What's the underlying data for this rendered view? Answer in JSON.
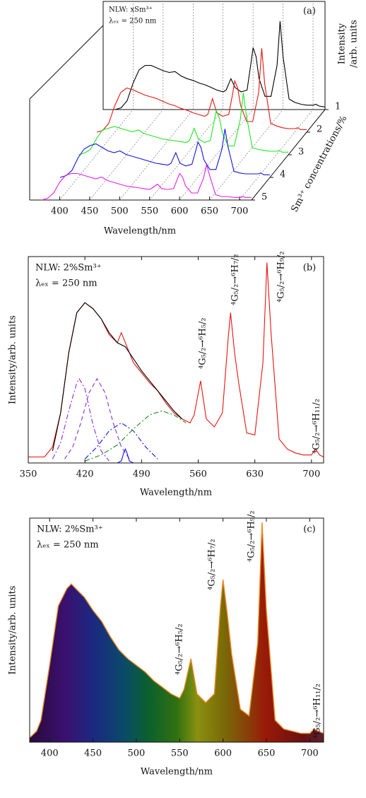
{
  "chart_data": [
    {
      "type": "waterfall",
      "panel_label": "(a)",
      "annotations": [
        "NLW: xSm³⁺",
        "λₑₓ = 250 nm"
      ],
      "ylabel": [
        "Intensity",
        "/arb. units"
      ],
      "xlabel": "Wavelength/nm",
      "zlabel": "Sm³⁺ concentrations/%",
      "xlim": [
        350,
        720
      ],
      "xticks": [
        400,
        450,
        500,
        550,
        600,
        650,
        700
      ],
      "x": [
        370,
        380,
        390,
        400,
        410,
        420,
        430,
        440,
        450,
        460,
        470,
        480,
        490,
        500,
        510,
        520,
        530,
        540,
        550,
        555,
        563,
        570,
        580,
        590,
        597,
        600,
        605,
        610,
        620,
        630,
        640,
        645,
        650,
        660,
        670,
        680,
        690,
        700,
        705,
        710,
        720
      ],
      "series": [
        {
          "name": "1",
          "color": "#000000",
          "values": [
            0,
            2,
            10,
            30,
            45,
            50,
            50,
            47,
            44,
            42,
            43,
            38,
            35,
            33,
            30,
            28,
            25,
            22,
            20,
            22,
            35,
            25,
            20,
            22,
            55,
            70,
            60,
            35,
            15,
            15,
            50,
            100,
            60,
            12,
            8,
            6,
            5,
            5,
            6,
            4,
            3
          ]
        },
        {
          "name": "2",
          "color": "#e8140f",
          "values": [
            0,
            2,
            10,
            30,
            45,
            50,
            48,
            45,
            42,
            40,
            38,
            35,
            32,
            30,
            27,
            25,
            22,
            20,
            18,
            20,
            38,
            22,
            18,
            20,
            45,
            58,
            50,
            30,
            12,
            12,
            45,
            95,
            55,
            10,
            7,
            5,
            4,
            4,
            5,
            3,
            3
          ]
        },
        {
          "name": "3",
          "color": "#1ee81e",
          "values": [
            0,
            2,
            6,
            18,
            28,
            30,
            32,
            30,
            28,
            26,
            28,
            24,
            22,
            20,
            18,
            17,
            16,
            15,
            14,
            16,
            30,
            18,
            14,
            16,
            40,
            50,
            42,
            25,
            10,
            10,
            40,
            70,
            45,
            8,
            6,
            5,
            4,
            4,
            5,
            3,
            3
          ]
        },
        {
          "name": "4",
          "color": "#1414e0",
          "values": [
            0,
            2,
            8,
            22,
            32,
            36,
            38,
            34,
            30,
            28,
            30,
            26,
            24,
            22,
            20,
            18,
            16,
            15,
            14,
            16,
            28,
            16,
            13,
            15,
            32,
            40,
            34,
            20,
            9,
            9,
            32,
            55,
            35,
            7,
            5,
            4,
            4,
            4,
            5,
            3,
            3
          ]
        },
        {
          "name": "5",
          "color": "#e81ee8",
          "values": [
            0,
            2,
            8,
            20,
            28,
            30,
            30,
            28,
            26,
            24,
            26,
            22,
            20,
            18,
            16,
            15,
            14,
            13,
            12,
            14,
            18,
            13,
            12,
            13,
            25,
            30,
            26,
            16,
            8,
            8,
            25,
            40,
            28,
            6,
            4,
            4,
            3,
            3,
            4,
            3,
            3
          ]
        }
      ]
    },
    {
      "type": "line",
      "panel_label": "(b)",
      "annotations": [
        "NLW: 2%Sm³⁺",
        "λₑₓ = 250 nm"
      ],
      "peak_labels": [
        "⁴G₅/₂→⁶H₅/₂",
        "⁴G₅/₂→⁶H₇/₂",
        "⁴G₅/₂→⁶H₉/₂",
        "⁴G₅/₂→⁶H₁₁/₂"
      ],
      "ylabel": "Intensity/arb. units",
      "xlabel": "Wavelength/nm",
      "xlim": [
        350,
        715
      ],
      "ylim": [
        0,
        103
      ],
      "xticks": [
        350,
        420,
        490,
        560,
        630,
        700
      ],
      "series": [
        {
          "color": "#e8140f",
          "style": "solid",
          "x": [
            350,
            360,
            370,
            380,
            390,
            400,
            410,
            420,
            430,
            440,
            450,
            460,
            465,
            470,
            475,
            480,
            490,
            500,
            510,
            520,
            530,
            540,
            550,
            555,
            563,
            570,
            580,
            590,
            597,
            600,
            605,
            610,
            620,
            630,
            640,
            645,
            650,
            660,
            670,
            680,
            690,
            700,
            705,
            710,
            715
          ],
          "values": [
            3,
            3,
            3,
            8,
            25,
            55,
            75,
            80,
            77,
            72,
            64,
            60,
            65,
            60,
            55,
            50,
            45,
            40,
            36,
            30,
            25,
            22,
            20,
            24,
            41,
            22,
            18,
            25,
            62,
            75,
            55,
            40,
            15,
            14,
            50,
            100,
            65,
            12,
            7,
            5,
            4,
            4,
            7,
            4,
            3
          ]
        },
        {
          "color": "#000000",
          "style": "solid",
          "x": [
            380,
            390,
            400,
            410,
            420,
            430,
            440,
            450,
            460,
            470,
            480,
            490,
            500,
            510,
            520,
            530,
            540
          ],
          "values": [
            6,
            25,
            55,
            75,
            80,
            77,
            72,
            65,
            60,
            58,
            52,
            46,
            41,
            36,
            31,
            26,
            22
          ]
        },
        {
          "color": "#8a2be2",
          "style": "dashdot",
          "x": [
            380,
            390,
            400,
            410,
            413,
            420,
            430,
            440,
            450
          ],
          "values": [
            2,
            10,
            26,
            40,
            42,
            37,
            19,
            6,
            1
          ]
        },
        {
          "color": "#8a2be2",
          "style": "dashed",
          "x": [
            395,
            405,
            415,
            425,
            435,
            445,
            455,
            465,
            475
          ],
          "values": [
            2,
            8,
            20,
            35,
            42,
            35,
            20,
            8,
            2
          ]
        },
        {
          "color": "#1414e0",
          "style": "dashdot",
          "x": [
            420,
            435,
            450,
            465,
            480,
            495,
            510
          ],
          "values": [
            2,
            8,
            16,
            20,
            16,
            8,
            2
          ]
        },
        {
          "color": "#1a8a1a",
          "style": "dashdot",
          "x": [
            420,
            440,
            460,
            480,
            500,
            515,
            530,
            545
          ],
          "values": [
            1,
            4,
            9,
            17,
            24,
            26,
            24,
            20
          ]
        },
        {
          "color": "#1414e0",
          "style": "solid",
          "x": [
            460,
            465,
            468,
            470,
            472,
            475,
            480
          ],
          "values": [
            0,
            1,
            5,
            7,
            5,
            1,
            0
          ]
        }
      ]
    },
    {
      "type": "area",
      "panel_label": "(c)",
      "annotations": [
        "NLW: 2%Sm³⁺",
        "λₑₓ = 250 nm"
      ],
      "peak_labels": [
        "⁴G₅/₂→⁶H₅/₂",
        "⁴G₅/₂→⁶H₇/₂",
        "⁴G₅/₂→⁶H₉/₂",
        "⁴G₅/₂→⁶H₁₁/₂"
      ],
      "ylabel": "Intensity/arb. units",
      "xlabel": "Wavelength/nm",
      "xlim": [
        377,
        716
      ],
      "ylim": [
        0,
        102
      ],
      "xticks": [
        400,
        450,
        500,
        550,
        600,
        650,
        700
      ],
      "series": [
        {
          "color": "#f08a24",
          "style": "solid",
          "x": [
            377,
            385,
            390,
            400,
            410,
            420,
            425,
            430,
            440,
            450,
            460,
            470,
            480,
            490,
            500,
            510,
            520,
            530,
            540,
            550,
            555,
            563,
            570,
            580,
            590,
            597,
            600,
            605,
            610,
            620,
            630,
            640,
            645,
            650,
            660,
            670,
            680,
            690,
            700,
            705,
            710,
            716
          ],
          "values": [
            2,
            5,
            10,
            35,
            62,
            70,
            72,
            70,
            66,
            60,
            55,
            48,
            42,
            38,
            35,
            32,
            28,
            25,
            22,
            20,
            24,
            38,
            22,
            18,
            22,
            62,
            74,
            58,
            40,
            15,
            12,
            45,
            100,
            60,
            10,
            6,
            5,
            4,
            4,
            6,
            5,
            4
          ]
        }
      ]
    }
  ]
}
